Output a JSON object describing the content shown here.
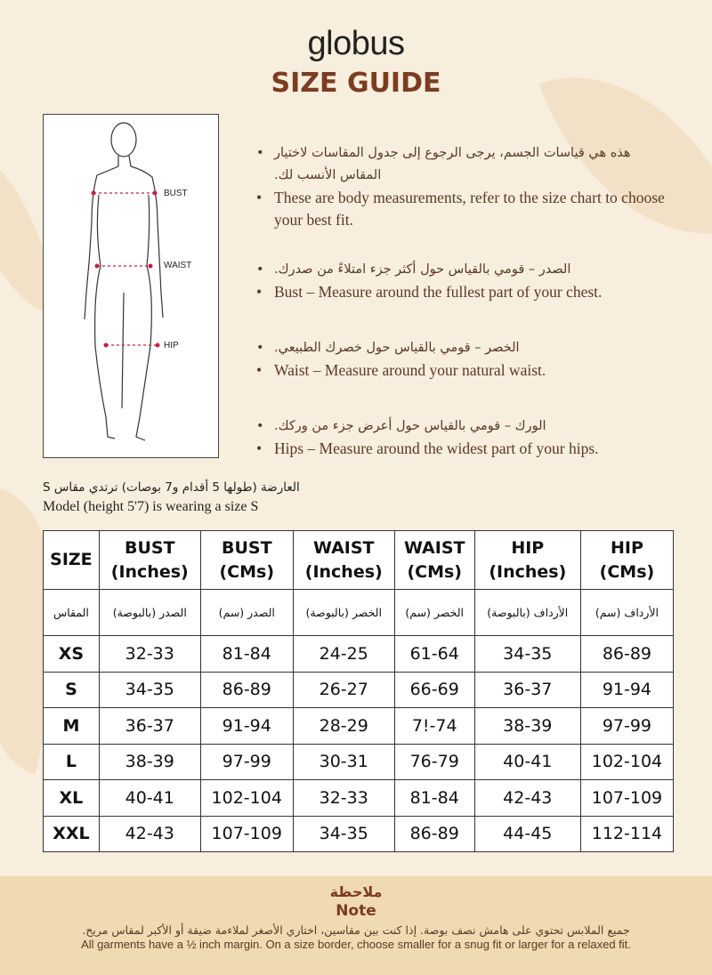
{
  "brand": "globus",
  "title": "SIZE GUIDE",
  "figure": {
    "labels": [
      "BUST",
      "WAIST",
      "HIP"
    ],
    "marker_color": "#c0243a"
  },
  "bullets": [
    {
      "ar": "هذه هي قياسات الجسم، يرجى الرجوع إلى جدول المقاسات لاختيار المقاس الأنسب لك.",
      "en": "These are body measurements, refer to the size chart to choose your best fit."
    },
    {
      "ar": "الصدر – قومي بالقياس حول أكثر جزء امتلاءً من صدرك.",
      "en": "Bust – Measure around the fullest part of your chest."
    },
    {
      "ar": "الخصر – قومي بالقياس حول خصرك الطبيعي.",
      "en": "Waist – Measure around your natural waist."
    },
    {
      "ar": "الورك – قومي بالقياس حول أعرض جزء من وركك.",
      "en": "Hips – Measure around the widest part of your hips."
    }
  ],
  "model": {
    "ar": "العارضة (طولها 5 أقدام و7 بوصات) ترتدي مقاس S",
    "en": "Model (height 5'7) is wearing a size S"
  },
  "table": {
    "headers": [
      [
        "SIZE",
        ""
      ],
      [
        "BUST",
        "(Inches)"
      ],
      [
        "BUST",
        "(CMs)"
      ],
      [
        "WAIST",
        "(Inches)"
      ],
      [
        "WAIST",
        "(CMs)"
      ],
      [
        "HIP",
        "(Inches)"
      ],
      [
        "HIP",
        "(CMs)"
      ]
    ],
    "headers_ar": [
      "المقاس",
      "الصدر (بالبوصة)",
      "الصدر (سم)",
      "الخصر (بالبوصة)",
      "الخصر (سم)",
      "الأرداف (بالبوصة)",
      "الأرداف (سم)"
    ],
    "rows": [
      [
        "XS",
        "32-33",
        "81-84",
        "24-25",
        "61-64",
        "34-35",
        "86-89"
      ],
      [
        "S",
        "34-35",
        "86-89",
        "26-27",
        "66-69",
        "36-37",
        "91-94"
      ],
      [
        "M",
        "36-37",
        "91-94",
        "28-29",
        "7!-74",
        "38-39",
        "97-99"
      ],
      [
        "L",
        "38-39",
        "97-99",
        "30-31",
        "76-79",
        "40-41",
        "102-104"
      ],
      [
        "XL",
        "40-41",
        "102-104",
        "32-33",
        "81-84",
        "42-43",
        "107-109"
      ],
      [
        "XXL",
        "42-43",
        "107-109",
        "34-35",
        "86-89",
        "44-45",
        "112-114"
      ]
    ]
  },
  "note": {
    "title_ar": "ملاحظة",
    "title": "Note",
    "text_ar": "جميع الملابس تحتوي على هامش نصف بوصة. إذا كنت بين مقاسين، اختاري الأصغر لملاءمة ضيقة أو الأكبر لمقاس مريح.",
    "text": "All garments have a ½ inch margin. On a size border, choose smaller for a snug fit or larger for a relaxed fit."
  },
  "colors": {
    "title": "#7b3c20",
    "background": "#f8eedd",
    "note_band": "#f0dab2"
  }
}
